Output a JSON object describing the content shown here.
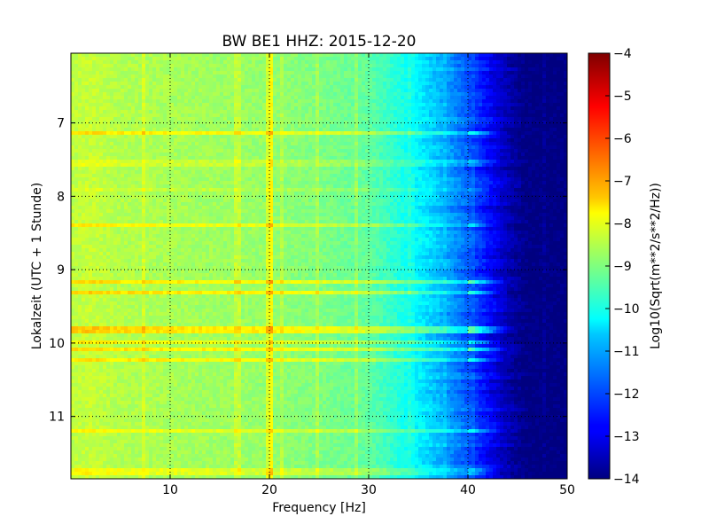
{
  "chart_data": {
    "type": "heatmap",
    "title": "BW BE1 HHZ: 2015-12-20",
    "xlabel": "Frequency [Hz]",
    "ylabel": "Lokalzeit (UTC + 1 Stunde)",
    "xlim": [
      0,
      50
    ],
    "ylim": [
      11.85,
      6.05
    ],
    "y_inverted": true,
    "xticks": [
      10,
      20,
      30,
      40,
      50
    ],
    "xtick_labels": [
      "10",
      "20",
      "30",
      "40",
      "50"
    ],
    "yticks": [
      7,
      8,
      9,
      10,
      11
    ],
    "ytick_labels": [
      "7",
      "8",
      "9",
      "10",
      "11"
    ],
    "grid": true,
    "colormap": "jet",
    "colorbar": {
      "label": "Log10(Sqrt(m**2/s**2/Hz))",
      "range": [
        -14,
        -4
      ],
      "ticks": [
        -4,
        -5,
        -6,
        -7,
        -8,
        -9,
        -10,
        -11,
        -12,
        -13,
        -14
      ],
      "tick_labels": [
        "−4",
        "−5",
        "−6",
        "−7",
        "−8",
        "−9",
        "−10",
        "−11",
        "−12",
        "−13",
        "−14"
      ]
    },
    "profile_frequency_hz": [
      0,
      2,
      5,
      10,
      15,
      20,
      25,
      30,
      33,
      36,
      38,
      40,
      42,
      43,
      45,
      46,
      50
    ],
    "profile_level": [
      -8.4,
      -8.3,
      -8.5,
      -8.6,
      -8.7,
      -8.8,
      -9.0,
      -9.3,
      -9.9,
      -10.6,
      -11.2,
      -11.9,
      -12.7,
      -13.2,
      -13.8,
      -14.0,
      -14.0
    ],
    "bright_bands_hour": [
      7.15,
      7.55,
      7.9,
      8.4,
      9.15,
      9.3,
      9.82,
      9.98,
      10.1,
      10.22,
      11.2,
      11.75
    ],
    "bright_band_strength": [
      1.2,
      0.5,
      0.4,
      1.0,
      1.3,
      1.4,
      1.5,
      1.0,
      1.3,
      1.2,
      0.9,
      0.8
    ],
    "bright_column_hz": 20
  }
}
